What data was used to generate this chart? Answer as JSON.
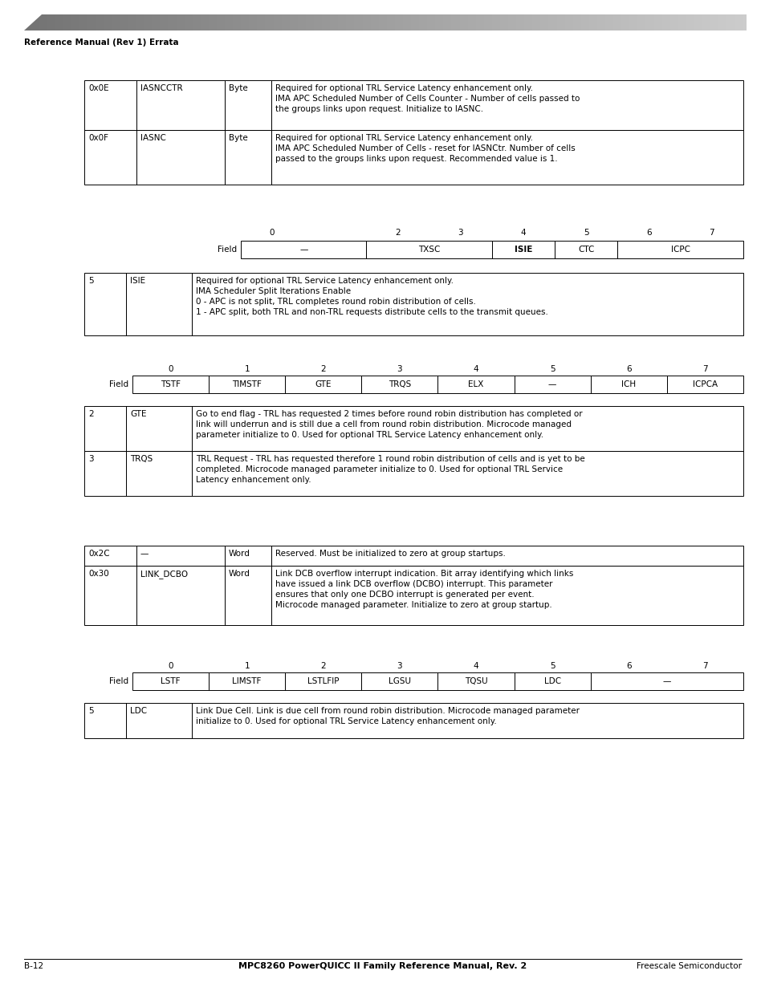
{
  "bg_color": "#ffffff",
  "header_text": "Reference Manual (Rev 1) Errata",
  "footer_left": "B-12",
  "footer_center": "MPC8260 PowerQUICC II Family Reference Manual, Rev. 2",
  "footer_right": "Freescale Semiconductor",
  "table1_rows": [
    {
      "col1": "0x0E",
      "col2": "IASNCCTR",
      "col3": "Byte",
      "col4": "Required for optional TRL Service Latency enhancement only.\nIMA APC Scheduled Number of Cells Counter - Number of cells passed to\nthe groups links upon request. Initialize to IASNC."
    },
    {
      "col1": "0x0F",
      "col2": "IASNC",
      "col3": "Byte",
      "col4": "Required for optional TRL Service Latency enhancement only.\nIMA APC Scheduled Number of Cells - reset for IASNCtr. Number of cells\npassed to the groups links upon request. Recommended value is 1."
    }
  ],
  "bitfield1_spans": [
    {
      "start": 0,
      "end": 2,
      "label": "—",
      "bold": false
    },
    {
      "start": 2,
      "end": 4,
      "label": "TXSC",
      "bold": false
    },
    {
      "start": 4,
      "end": 5,
      "label": "ISIE",
      "bold": true
    },
    {
      "start": 5,
      "end": 6,
      "label": "CTC",
      "bold": false
    },
    {
      "start": 6,
      "end": 8,
      "label": "ICPC",
      "bold": false
    }
  ],
  "bitfield1_nums": [
    0,
    2,
    3,
    4,
    5,
    6,
    7
  ],
  "table2_rows": [
    {
      "col1": "5",
      "col2": "ISIE",
      "col4": "Required for optional TRL Service Latency enhancement only.\nIMA Scheduler Split Iterations Enable\n0 - APC is not split, TRL completes round robin distribution of cells.\n1 - APC split, both TRL and non-TRL requests distribute cells to the transmit queues."
    }
  ],
  "bitfield2_spans": [
    {
      "start": 0,
      "end": 1,
      "label": "TSTF"
    },
    {
      "start": 1,
      "end": 2,
      "label": "TIMSTF"
    },
    {
      "start": 2,
      "end": 3,
      "label": "GTE"
    },
    {
      "start": 3,
      "end": 4,
      "label": "TRQS"
    },
    {
      "start": 4,
      "end": 5,
      "label": "ELX"
    },
    {
      "start": 5,
      "end": 6,
      "label": "—"
    },
    {
      "start": 6,
      "end": 7,
      "label": "ICH"
    },
    {
      "start": 7,
      "end": 8,
      "label": "ICPCA"
    }
  ],
  "bitfield2_nums": [
    0,
    1,
    2,
    3,
    4,
    5,
    6,
    7
  ],
  "table3_rows": [
    {
      "col1": "2",
      "col2": "GTE",
      "col4": "Go to end flag - TRL has requested 2 times before round robin distribution has completed or\nlink will underrun and is still due a cell from round robin distribution. Microcode managed\nparameter initialize to 0. Used for optional TRL Service Latency enhancement only."
    },
    {
      "col1": "3",
      "col2": "TRQS",
      "col4": "TRL Request - TRL has requested therefore 1 round robin distribution of cells and is yet to be\ncompleted. Microcode managed parameter initialize to 0. Used for optional TRL Service\nLatency enhancement only."
    }
  ],
  "table4_rows": [
    {
      "col1": "0x2C",
      "col2": "—",
      "col3": "Word",
      "col4": "Reserved. Must be initialized to zero at group startups."
    },
    {
      "col1": "0x30",
      "col2": "LINK_DCBO",
      "col3": "Word",
      "col4": "Link DCB overflow interrupt indication. Bit array identifying which links\nhave issued a link DCB overflow (DCBO) interrupt. This parameter\nensures that only one DCBO interrupt is generated per event.\nMicrocode managed parameter. Initialize to zero at group startup."
    }
  ],
  "bitfield3_spans": [
    {
      "start": 0,
      "end": 1,
      "label": "LSTF"
    },
    {
      "start": 1,
      "end": 2,
      "label": "LIMSTF"
    },
    {
      "start": 2,
      "end": 3,
      "label": "LSTLFIP"
    },
    {
      "start": 3,
      "end": 4,
      "label": "LGSU"
    },
    {
      "start": 4,
      "end": 5,
      "label": "TQSU"
    },
    {
      "start": 5,
      "end": 6,
      "label": "LDC"
    },
    {
      "start": 6,
      "end": 8,
      "label": "—"
    }
  ],
  "bitfield3_nums": [
    0,
    1,
    2,
    3,
    4,
    5,
    6,
    7
  ],
  "table5_rows": [
    {
      "col1": "5",
      "col2": "LDC",
      "col4": "Link Due Cell. Link is due cell from round robin distribution. Microcode managed parameter\ninitialize to 0. Used for optional TRL Service Latency enhancement only."
    }
  ]
}
